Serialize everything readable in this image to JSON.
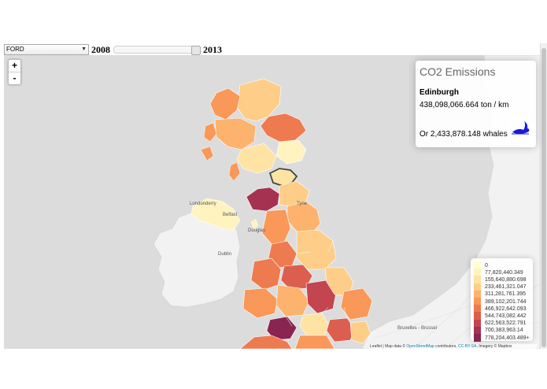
{
  "controls": {
    "make_select": "FORD",
    "year_start": "2008",
    "year_end": "2013"
  },
  "zoom": {
    "in_label": "+",
    "out_label": "-"
  },
  "info": {
    "title": "CO2 Emissions",
    "place": "Edinburgh",
    "value": "438,098,066.664 ton / km",
    "whales": "Or 2,433,878.148 whales",
    "whale_icon": "whale-icon"
  },
  "legend": {
    "items": [
      {
        "label": "0",
        "color": "#ffffcc"
      },
      {
        "label": "77,820,440.349",
        "color": "#fff3bf"
      },
      {
        "label": "155,640,880.698",
        "color": "#fee3a3"
      },
      {
        "label": "233,461,321.047",
        "color": "#fecd87"
      },
      {
        "label": "311,281,761.395",
        "color": "#fdb36e"
      },
      {
        "label": "389,102,201.744",
        "color": "#f99858"
      },
      {
        "label": "466,922,642.093",
        "color": "#ee7a50"
      },
      {
        "label": "544,743,082.442",
        "color": "#dc5e4e"
      },
      {
        "label": "622,563,522.791",
        "color": "#c3454f"
      },
      {
        "label": "700,383,963.14",
        "color": "#a63252"
      },
      {
        "label": "778,204,403.489+",
        "color": "#8a2552"
      }
    ]
  },
  "map_labels": {
    "london": "Londonderry",
    "douglas": "Douglas",
    "dublin": "Dublin",
    "belfast": "Belfast",
    "brussels": "Bruxelles - Brussel",
    "tyne": "Tyne"
  },
  "attribution": {
    "prefix": "Leaflet | Map data © ",
    "osm": "OpenStreetMap",
    "middle": " contributors, ",
    "license": "CC-BY-SA",
    "suffix": ", Imagery © Mapbox"
  },
  "colors": {
    "ocean": "#dcdcdc",
    "land": "#f2f2f2",
    "highlight_stroke": "#444444"
  }
}
